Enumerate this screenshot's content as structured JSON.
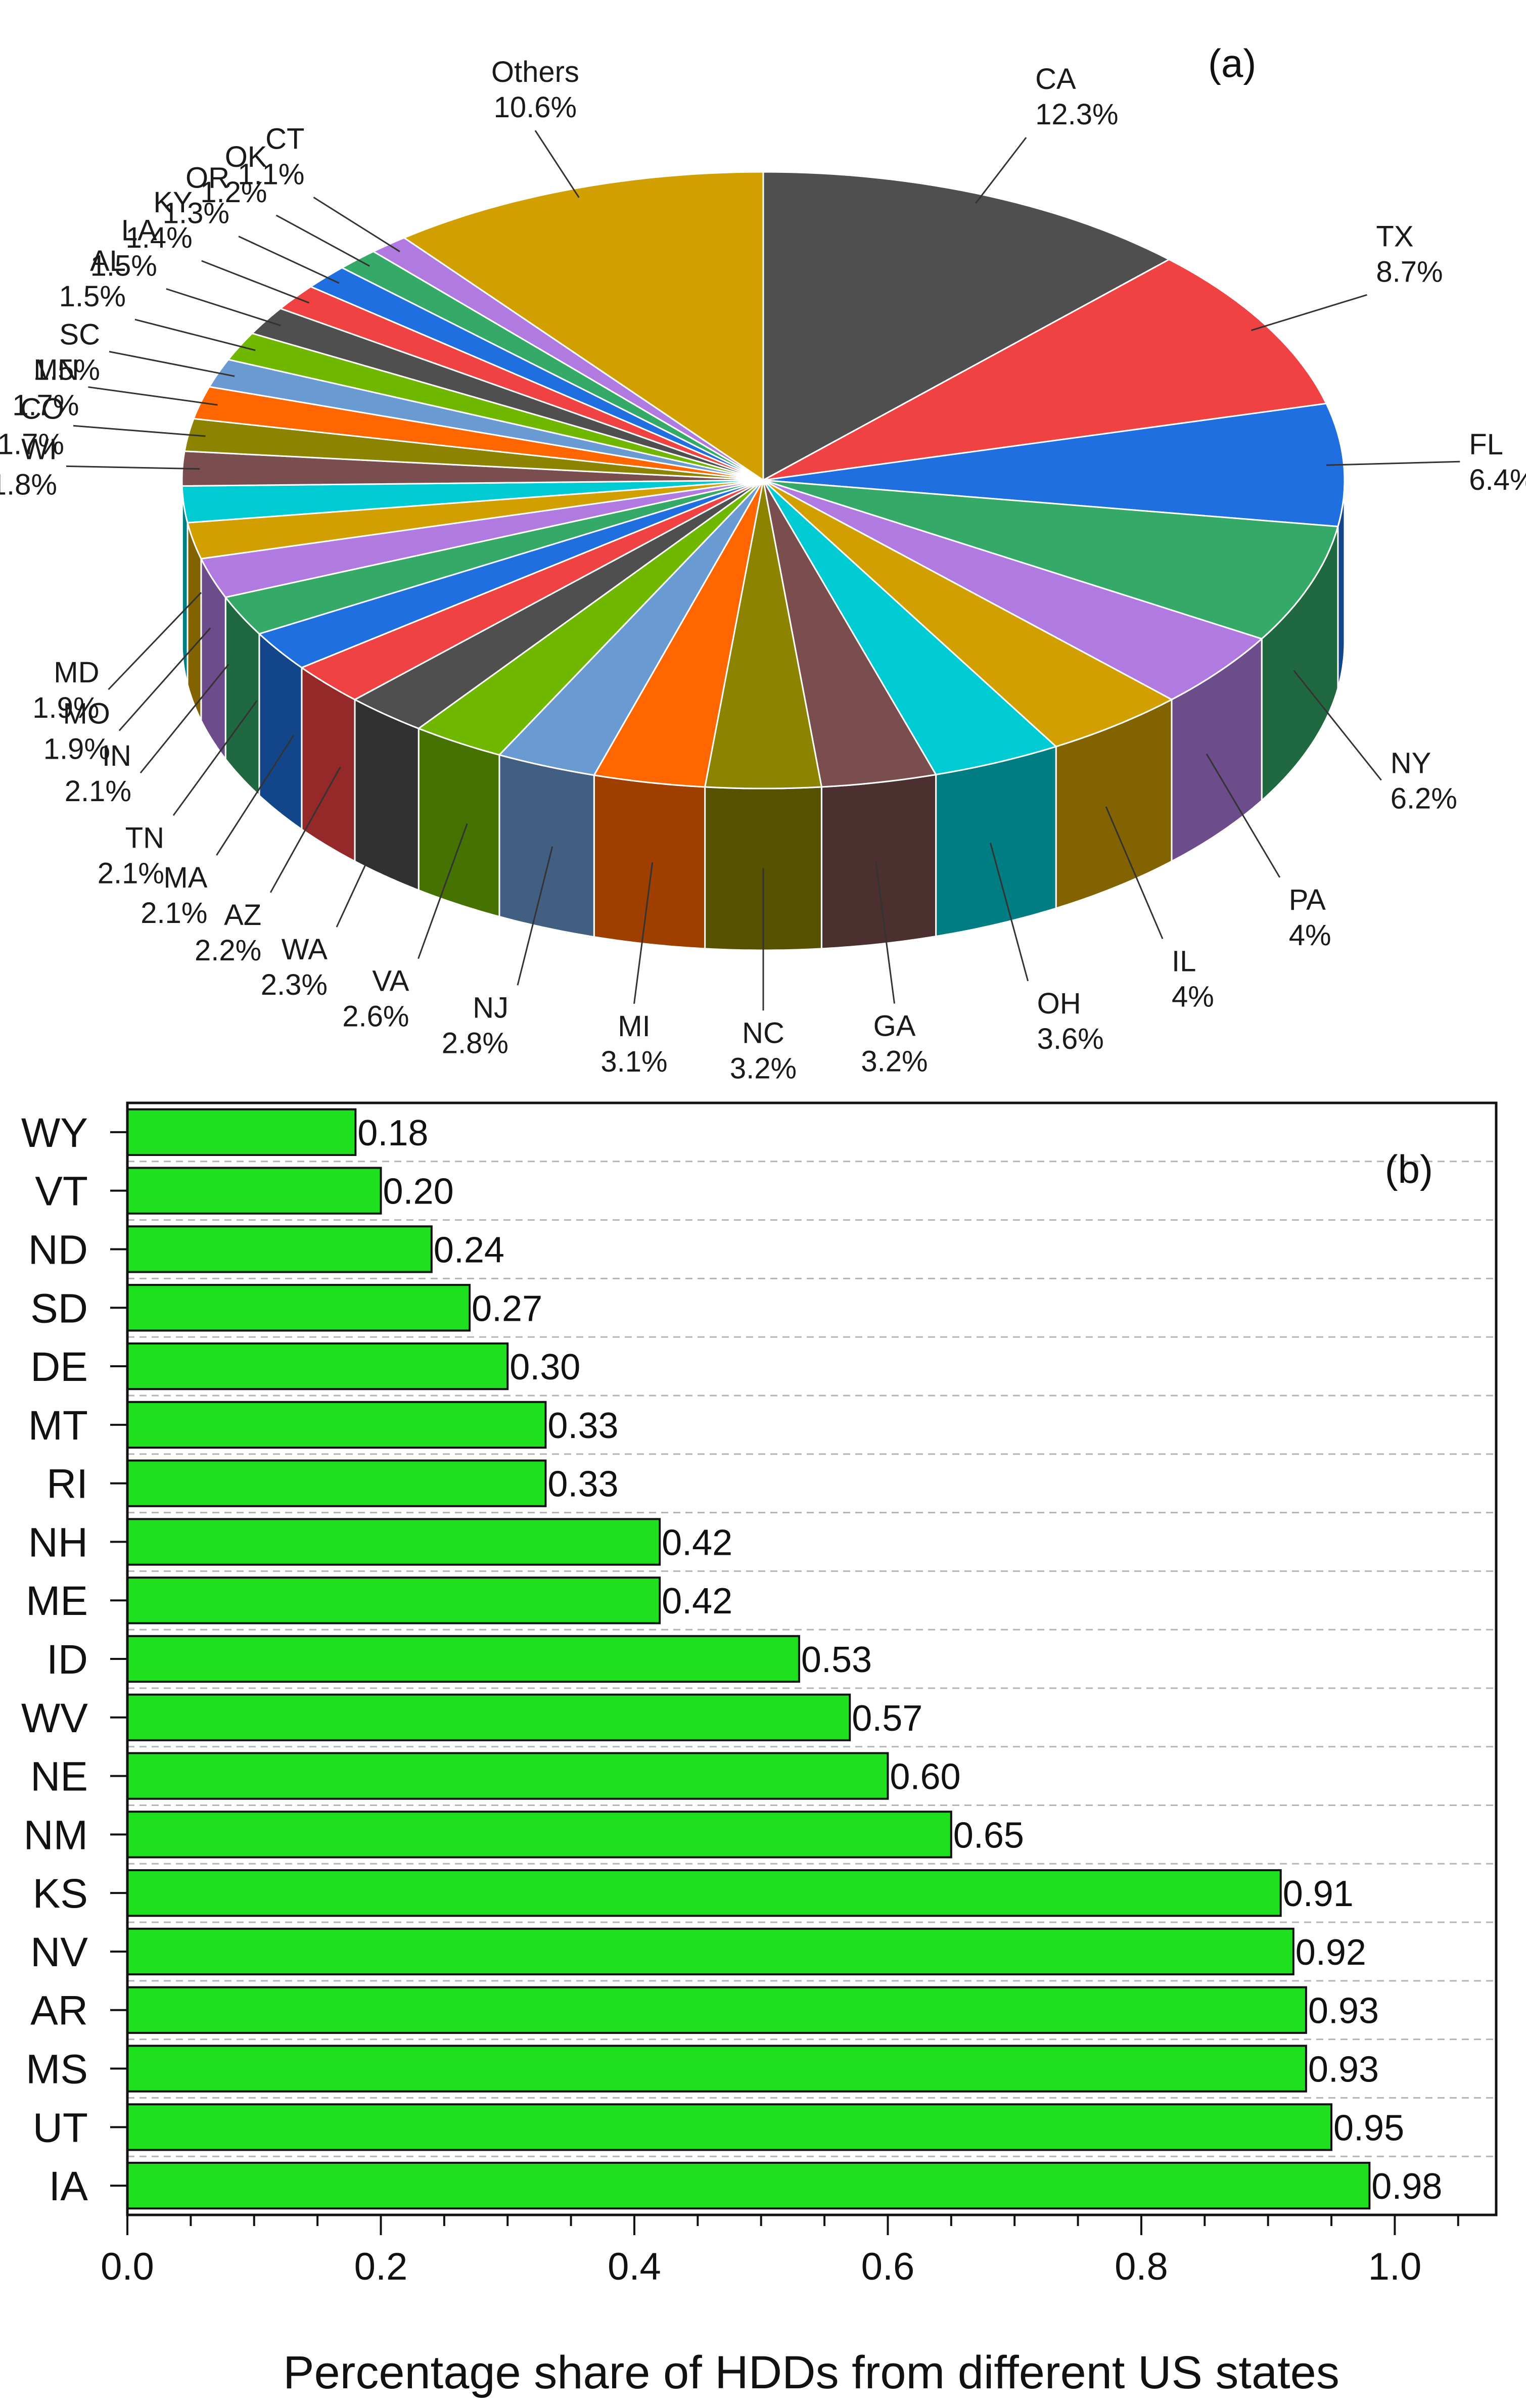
{
  "chart_data": [
    {
      "type": "pie",
      "panel_label": "(a)",
      "slices": [
        {
          "label": "CA",
          "value": 12.3,
          "value_text": "12.3%",
          "color": "#4f4f4f"
        },
        {
          "label": "TX",
          "value": 8.7,
          "value_text": "8.7%",
          "color": "#f04242"
        },
        {
          "label": "FL",
          "value": 6.4,
          "value_text": "6.4%",
          "color": "#1f6fe0"
        },
        {
          "label": "NY",
          "value": 6.2,
          "value_text": "6.2%",
          "color": "#34a968"
        },
        {
          "label": "PA",
          "value": 4.0,
          "value_text": "4%",
          "color": "#b07ae0"
        },
        {
          "label": "IL",
          "value": 4.0,
          "value_text": "4%",
          "color": "#d1a000"
        },
        {
          "label": "OH",
          "value": 3.6,
          "value_text": "3.6%",
          "color": "#00cad2"
        },
        {
          "label": "GA",
          "value": 3.2,
          "value_text": "3.2%",
          "color": "#7a4e4e"
        },
        {
          "label": "NC",
          "value": 3.2,
          "value_text": "3.2%",
          "color": "#8c8400"
        },
        {
          "label": "MI",
          "value": 3.1,
          "value_text": "3.1%",
          "color": "#ff6600"
        },
        {
          "label": "NJ",
          "value": 2.8,
          "value_text": "2.8%",
          "color": "#6a9ad2"
        },
        {
          "label": "VA",
          "value": 2.6,
          "value_text": "2.6%",
          "color": "#70b800"
        },
        {
          "label": "WA",
          "value": 2.3,
          "value_text": "2.3%",
          "color": "#4f4f4f"
        },
        {
          "label": "AZ",
          "value": 2.2,
          "value_text": "2.2%",
          "color": "#f04242"
        },
        {
          "label": "MA",
          "value": 2.1,
          "value_text": "2.1%",
          "color": "#1f6fe0"
        },
        {
          "label": "TN",
          "value": 2.1,
          "value_text": "2.1%",
          "color": "#34a968"
        },
        {
          "label": "IN",
          "value": 2.1,
          "value_text": "2.1%",
          "color": "#b07ae0"
        },
        {
          "label": "MO",
          "value": 1.9,
          "value_text": "1.9%",
          "color": "#d1a000"
        },
        {
          "label": "MD",
          "value": 1.9,
          "value_text": "1.9%",
          "color": "#00cad2"
        },
        {
          "label": "WI",
          "value": 1.8,
          "value_text": "1.8%",
          "color": "#7a4e4e"
        },
        {
          "label": "CO",
          "value": 1.7,
          "value_text": "1.7%",
          "color": "#8c8400"
        },
        {
          "label": "MN",
          "value": 1.7,
          "value_text": "1.7%",
          "color": "#ff6600"
        },
        {
          "label": "SC",
          "value": 1.5,
          "value_text": "1.5%",
          "color": "#6a9ad2"
        },
        {
          "label": "AL",
          "value": 1.5,
          "value_text": "1.5%",
          "color": "#70b800"
        },
        {
          "label": "LA",
          "value": 1.5,
          "value_text": "1.5%",
          "color": "#4f4f4f"
        },
        {
          "label": "KY",
          "value": 1.4,
          "value_text": "1.4%",
          "color": "#f04242"
        },
        {
          "label": "OR",
          "value": 1.3,
          "value_text": "1.3%",
          "color": "#1f6fe0"
        },
        {
          "label": "OK",
          "value": 1.2,
          "value_text": "1.2%",
          "color": "#34a968"
        },
        {
          "label": "CT",
          "value": 1.1,
          "value_text": "1.1%",
          "color": "#b07ae0"
        },
        {
          "label": "Others",
          "value": 10.6,
          "value_text": "10.6%",
          "color": "#d1a000"
        }
      ]
    },
    {
      "type": "bar",
      "orientation": "horizontal",
      "panel_label": "(b)",
      "categories": [
        "WY",
        "VT",
        "ND",
        "SD",
        "DE",
        "MT",
        "RI",
        "NH",
        "ME",
        "ID",
        "WV",
        "NE",
        "NM",
        "KS",
        "NV",
        "AR",
        "MS",
        "UT",
        "IA"
      ],
      "values": [
        0.18,
        0.2,
        0.24,
        0.27,
        0.3,
        0.33,
        0.33,
        0.42,
        0.42,
        0.53,
        0.57,
        0.6,
        0.65,
        0.91,
        0.92,
        0.93,
        0.93,
        0.95,
        0.98
      ],
      "value_labels": [
        "0.18",
        "0.20",
        "0.24",
        "0.27",
        "0.30",
        "0.33",
        "0.33",
        "0.42",
        "0.42",
        "0.53",
        "0.57",
        "0.60",
        "0.65",
        "0.91",
        "0.92",
        "0.93",
        "0.93",
        "0.95",
        "0.98"
      ],
      "bar_color": "#1ee01e",
      "xlim": [
        0,
        1.08
      ],
      "xticks": [
        "0.0",
        "0.2",
        "0.4",
        "0.6",
        "0.8",
        "1.0"
      ],
      "xlabel": "Percentage share of HDDs from different US states"
    }
  ]
}
